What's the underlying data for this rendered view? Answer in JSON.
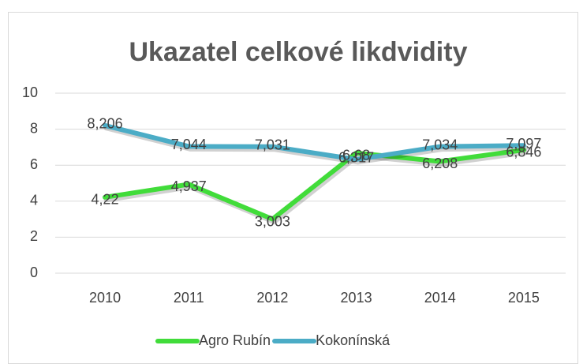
{
  "chart_data": {
    "type": "line",
    "title": "Ukazatel celkové likdvidity",
    "categories": [
      "2010",
      "2011",
      "2012",
      "2013",
      "2014",
      "2015"
    ],
    "series": [
      {
        "name": "Agro Rubín",
        "color": "#41dc3a",
        "values": [
          4.22,
          4.937,
          3.003,
          6.68,
          6.208,
          6.846
        ],
        "value_labels": [
          "4,22",
          "4,937",
          "3,003",
          "6,68",
          "6,208",
          "6,846"
        ]
      },
      {
        "name": "Kokonínská",
        "color": "#4bacc6",
        "values": [
          8.206,
          7.044,
          7.031,
          6.317,
          7.034,
          7.097
        ],
        "value_labels": [
          "8,206",
          "7,044",
          "7,031",
          "6,317",
          "7,034",
          "7,097"
        ]
      }
    ],
    "ylim": [
      0,
      10
    ],
    "yticks": [
      0,
      2,
      4,
      6,
      8,
      10
    ],
    "grid": true,
    "legend": "bottom"
  }
}
